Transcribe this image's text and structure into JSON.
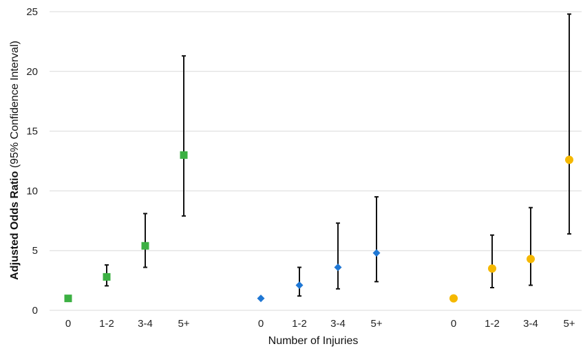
{
  "chart_data": {
    "type": "scatter",
    "title": "",
    "xlabel": "Number of Injuries",
    "ylabel_bold": "Adjusted Odds Ratio",
    "ylabel_rest": " (95% Confidence Interval)",
    "ylim": [
      0,
      25
    ],
    "yticks": [
      0,
      5,
      10,
      15,
      20,
      25
    ],
    "grid": true,
    "legend": "none",
    "categories": [
      "0",
      "1-2",
      "3-4",
      "5+"
    ],
    "series": [
      {
        "marker": "square",
        "color": "#3cb043",
        "points": [
          {
            "x": "0",
            "y": 1.0,
            "lo": null,
            "hi": null
          },
          {
            "x": "1-2",
            "y": 2.8,
            "lo": 2.05,
            "hi": 3.8
          },
          {
            "x": "3-4",
            "y": 5.4,
            "lo": 3.6,
            "hi": 8.1
          },
          {
            "x": "5+",
            "y": 13.0,
            "lo": 7.9,
            "hi": 21.3
          }
        ]
      },
      {
        "marker": "diamond",
        "color": "#1f77d4",
        "points": [
          {
            "x": "0",
            "y": 1.0,
            "lo": null,
            "hi": null
          },
          {
            "x": "1-2",
            "y": 2.1,
            "lo": 1.2,
            "hi": 3.6
          },
          {
            "x": "3-4",
            "y": 3.6,
            "lo": 1.8,
            "hi": 7.3
          },
          {
            "x": "5+",
            "y": 4.8,
            "lo": 2.4,
            "hi": 9.5
          }
        ]
      },
      {
        "marker": "circle",
        "color": "#f5b800",
        "points": [
          {
            "x": "0",
            "y": 1.0,
            "lo": null,
            "hi": null
          },
          {
            "x": "1-2",
            "y": 3.5,
            "lo": 1.9,
            "hi": 6.3
          },
          {
            "x": "3-4",
            "y": 4.3,
            "lo": 2.1,
            "hi": 8.6
          },
          {
            "x": "5+",
            "y": 12.6,
            "lo": 6.4,
            "hi": 24.8
          }
        ]
      }
    ]
  }
}
